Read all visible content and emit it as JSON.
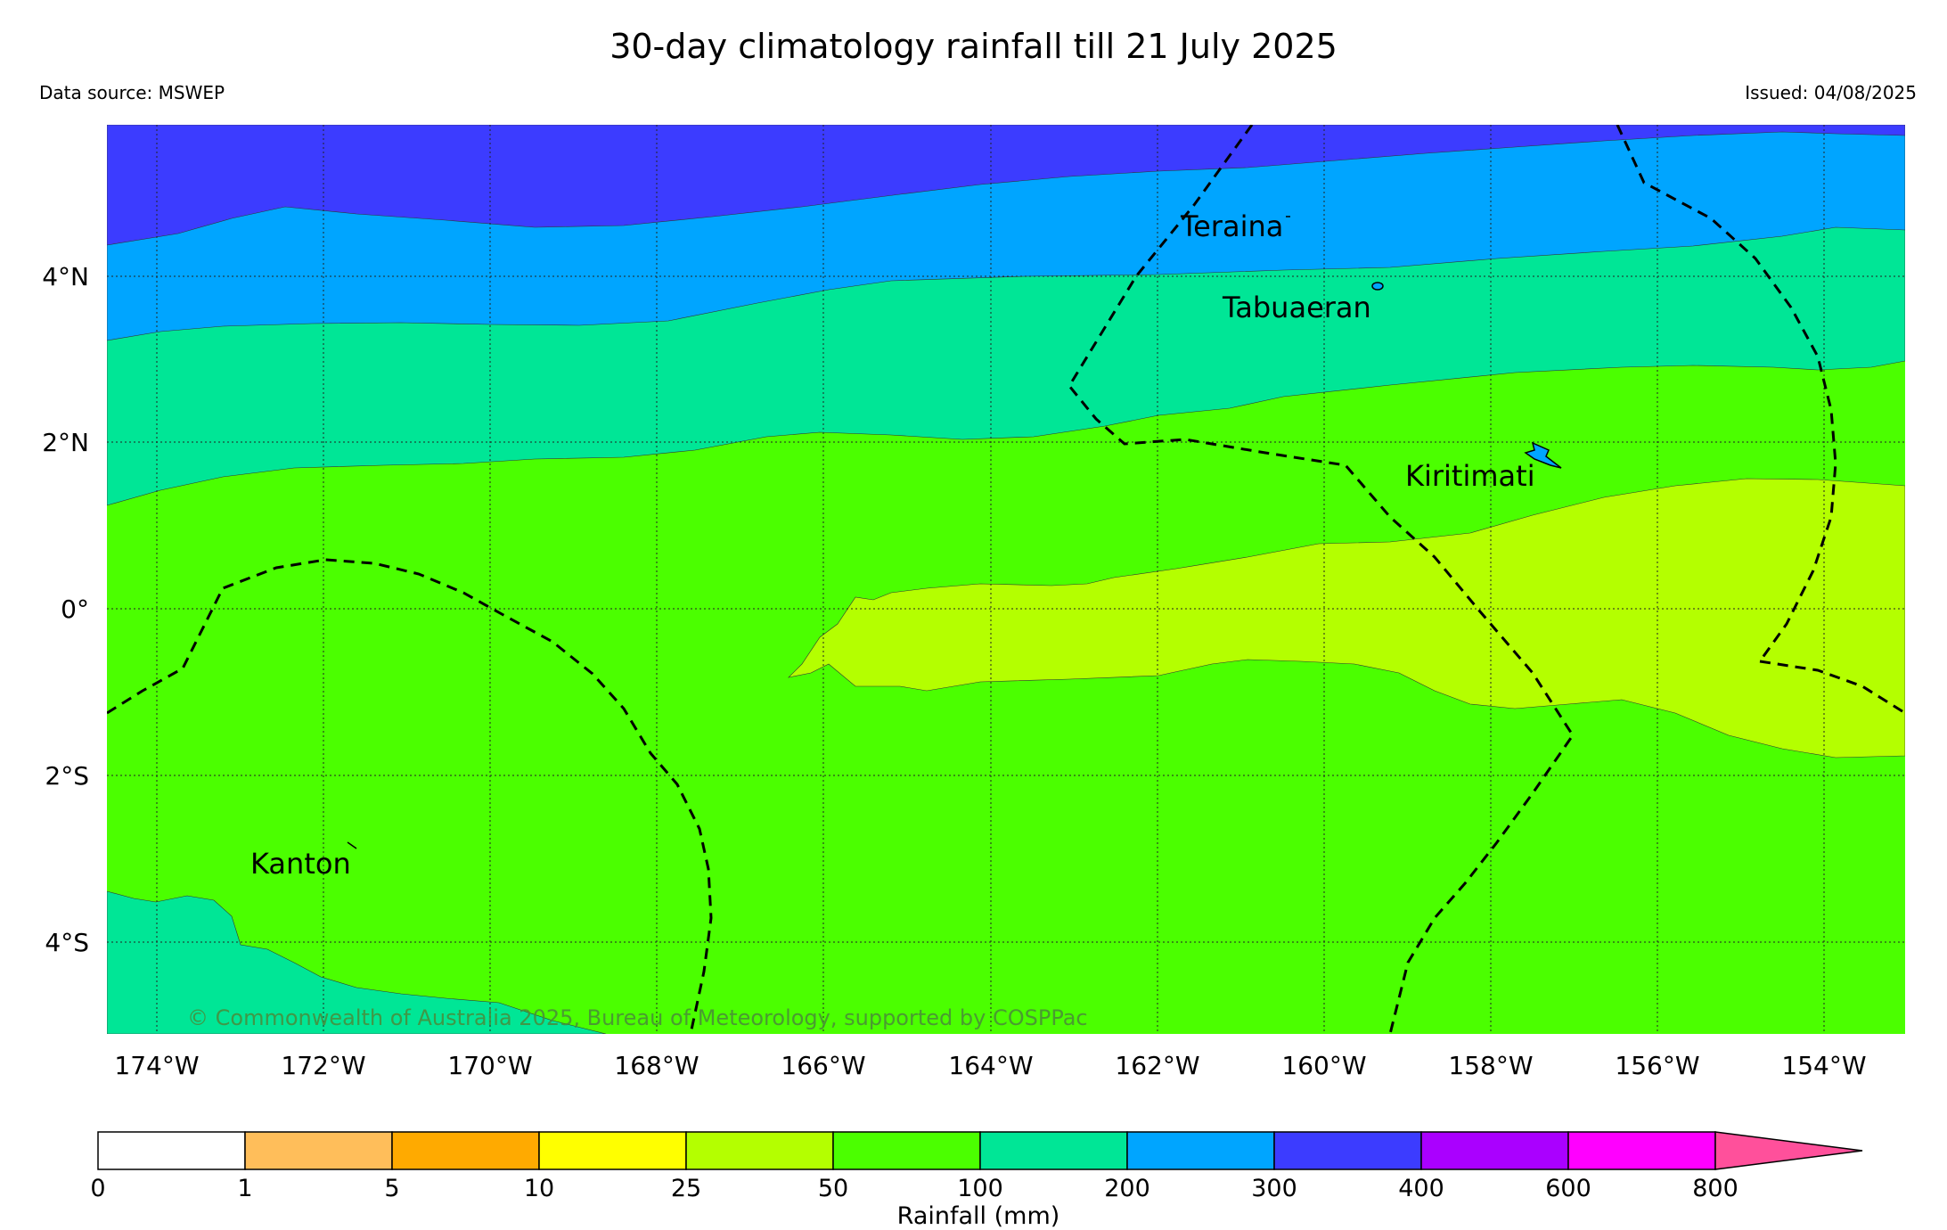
{
  "header": {
    "title": "30-day climatology rainfall till 21 July 2025",
    "data_source": "Data source: MSWEP",
    "issued": "Issued: 04/08/2025"
  },
  "map": {
    "lon_ticks": [
      "174°W",
      "172°W",
      "170°W",
      "168°W",
      "166°W",
      "164°W",
      "162°W",
      "160°W",
      "158°W",
      "156°W",
      "154°W"
    ],
    "lat_ticks": [
      "4°N",
      "2°N",
      "0°",
      "2°S",
      "4°S"
    ],
    "places": [
      {
        "name": "Teraina"
      },
      {
        "name": "Tabuaeran"
      },
      {
        "name": "Kiritimati"
      },
      {
        "name": "Kanton"
      }
    ],
    "copyright": "© Commonwealth of Australia 2025, Bureau of Meteorology, supported by COSPPac"
  },
  "colorbar": {
    "label": "Rainfall (mm)",
    "ticks": [
      "0",
      "1",
      "5",
      "10",
      "25",
      "50",
      "100",
      "200",
      "300",
      "400",
      "600",
      "800"
    ],
    "colors": [
      "#ffffff",
      "#ffbe5a",
      "#ffaa00",
      "#ffff00",
      "#b4ff00",
      "#4bff00",
      "#00e696",
      "#00a5ff",
      "#3c3cff",
      "#aa00ff",
      "#ff00ff",
      "#ff509b"
    ]
  },
  "rain_colors": {
    "band_300_400": "#3c3cff",
    "band_200_300": "#00a5ff",
    "band_100_200": "#00e696",
    "band_50_100": "#4bff00",
    "band_25_50": "#b4ff00"
  }
}
